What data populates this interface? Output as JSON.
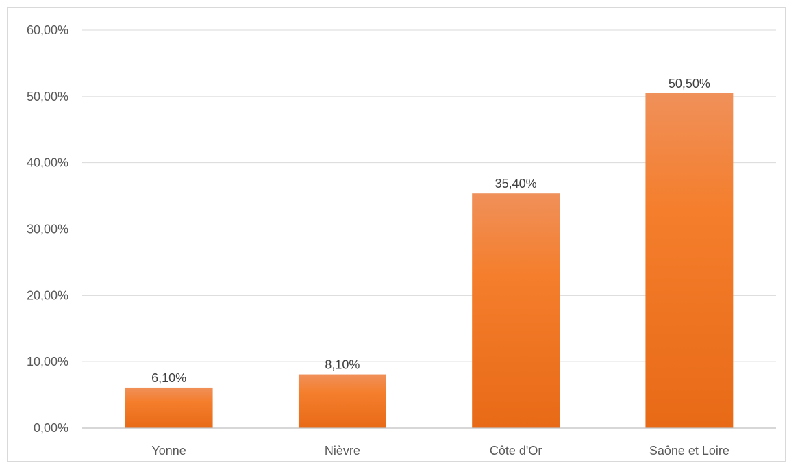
{
  "chart_data": {
    "type": "bar",
    "title": "",
    "xlabel": "",
    "ylabel": "",
    "categories": [
      "Yonne",
      "Nièvre",
      "Côte d'Or",
      "Saône et Loire"
    ],
    "values": [
      6.1,
      8.1,
      35.4,
      50.5
    ],
    "value_labels": [
      "6,10%",
      "8,10%",
      "35,40%",
      "50,50%"
    ],
    "ylim": [
      0,
      60
    ],
    "yticks": [
      0,
      10,
      20,
      30,
      40,
      50,
      60
    ],
    "ytick_labels": [
      "0,00%",
      "10,00%",
      "20,00%",
      "30,00%",
      "40,00%",
      "50,00%",
      "60,00%"
    ],
    "grid": true,
    "legend": "none",
    "colors": {
      "bar_top": "#f0905a",
      "bar_mid": "#f47e2c",
      "bar_bottom": "#e86a17",
      "grid": "#d9d9d9",
      "axis": "#bfbfbf",
      "frame": "#d9d9d9"
    }
  }
}
